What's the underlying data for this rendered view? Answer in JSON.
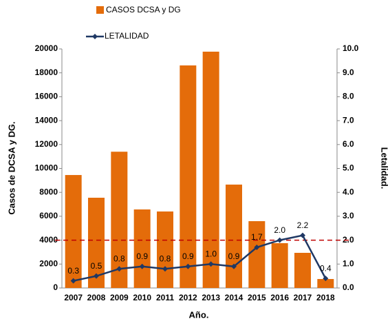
{
  "chart_data": {
    "type": "bar-line",
    "categories": [
      "2007",
      "2008",
      "2009",
      "2010",
      "2011",
      "2012",
      "2013",
      "2014",
      "2015",
      "2016",
      "2017",
      "2018"
    ],
    "x_label": "Año.",
    "y_label": "Casos de DCSA y DG.",
    "y2_label": "Letalidad.",
    "series": [
      {
        "name": "CASOS DCSA y DG",
        "type": "bar",
        "color": "#e46c0a",
        "values": [
          9450,
          7550,
          11400,
          6570,
          6400,
          18620,
          19770,
          8650,
          5590,
          3750,
          2940,
          750
        ]
      },
      {
        "name": "LETALIDAD",
        "type": "line",
        "axis": "y2",
        "color": "#1f3864",
        "values": [
          0.3,
          0.5,
          0.8,
          0.9,
          0.8,
          0.9,
          1.0,
          0.9,
          1.7,
          2.0,
          2.2,
          0.4
        ],
        "value_labels": [
          "0.3",
          "0.5",
          "0.8",
          "0.9",
          "0.8",
          "0.9",
          "1.0",
          "0.9",
          "1.7",
          "2.0",
          "2.2",
          "0.4"
        ]
      }
    ],
    "ylim": [
      0,
      20000
    ],
    "yticks": [
      0,
      2000,
      4000,
      6000,
      8000,
      10000,
      12000,
      14000,
      16000,
      18000,
      20000
    ],
    "y2lim": [
      0,
      10
    ],
    "y2ticks": [
      {
        "value": 0,
        "label": "0.0"
      },
      {
        "value": 1,
        "label": "1.0"
      },
      {
        "value": 2,
        "label": "2.0"
      },
      {
        "value": 3,
        "label": "3.0"
      },
      {
        "value": 4,
        "label": "4.0"
      },
      {
        "value": 5,
        "label": "5.0"
      },
      {
        "value": 6,
        "label": "6.0"
      },
      {
        "value": 7,
        "label": "7.0"
      },
      {
        "value": 8,
        "label": "8.0"
      },
      {
        "value": 9,
        "label": "9.0"
      },
      {
        "value": 10,
        "label": "10.0"
      }
    ],
    "reference_line": {
      "axis": "y2",
      "value": 2,
      "color": "#c00000"
    }
  }
}
